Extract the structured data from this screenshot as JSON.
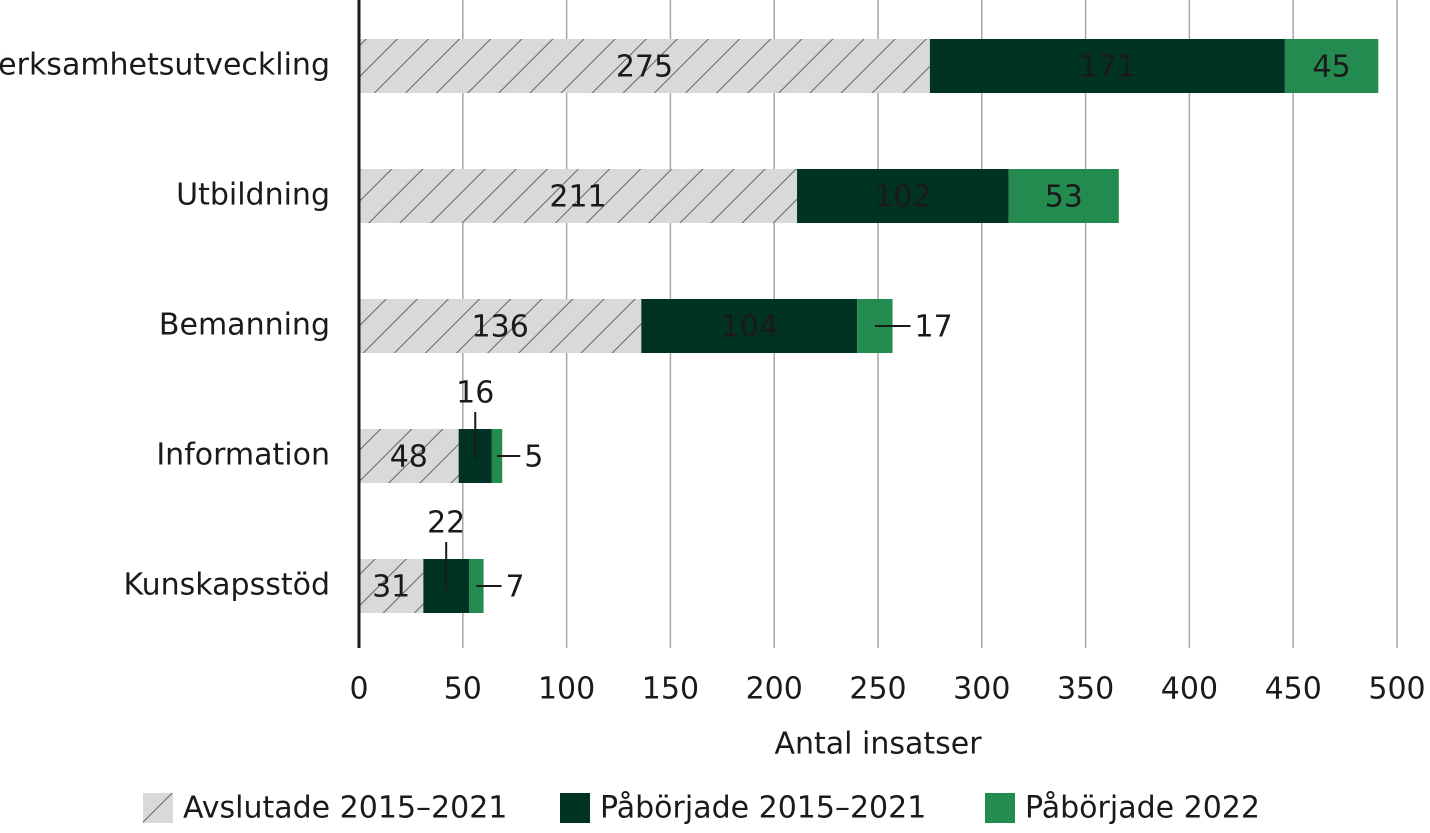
{
  "chart_data": {
    "type": "stacked_bar_horizontal",
    "categories": [
      "Verksamhetsutveckling",
      "Utbildning",
      "Bemanning",
      "Information",
      "Kunskapsstöd"
    ],
    "series": [
      {
        "name": "Avslutade 2015–2021",
        "color": "#d9d9d9",
        "pattern": "hatch",
        "values": [
          275,
          211,
          136,
          48,
          31
        ]
      },
      {
        "name": "Påbörjade 2015–2021",
        "color": "#003324",
        "values": [
          171,
          102,
          104,
          16,
          22
        ]
      },
      {
        "name": "Påbörjade 2022",
        "color": "#238b4f",
        "values": [
          45,
          53,
          17,
          5,
          7
        ]
      }
    ],
    "xlabel": "Antal insatser",
    "xlim": [
      0,
      500
    ],
    "xticks": [
      0,
      50,
      100,
      150,
      200,
      250,
      300,
      350,
      400,
      450,
      500
    ],
    "grid": true,
    "legend": "bottom"
  }
}
